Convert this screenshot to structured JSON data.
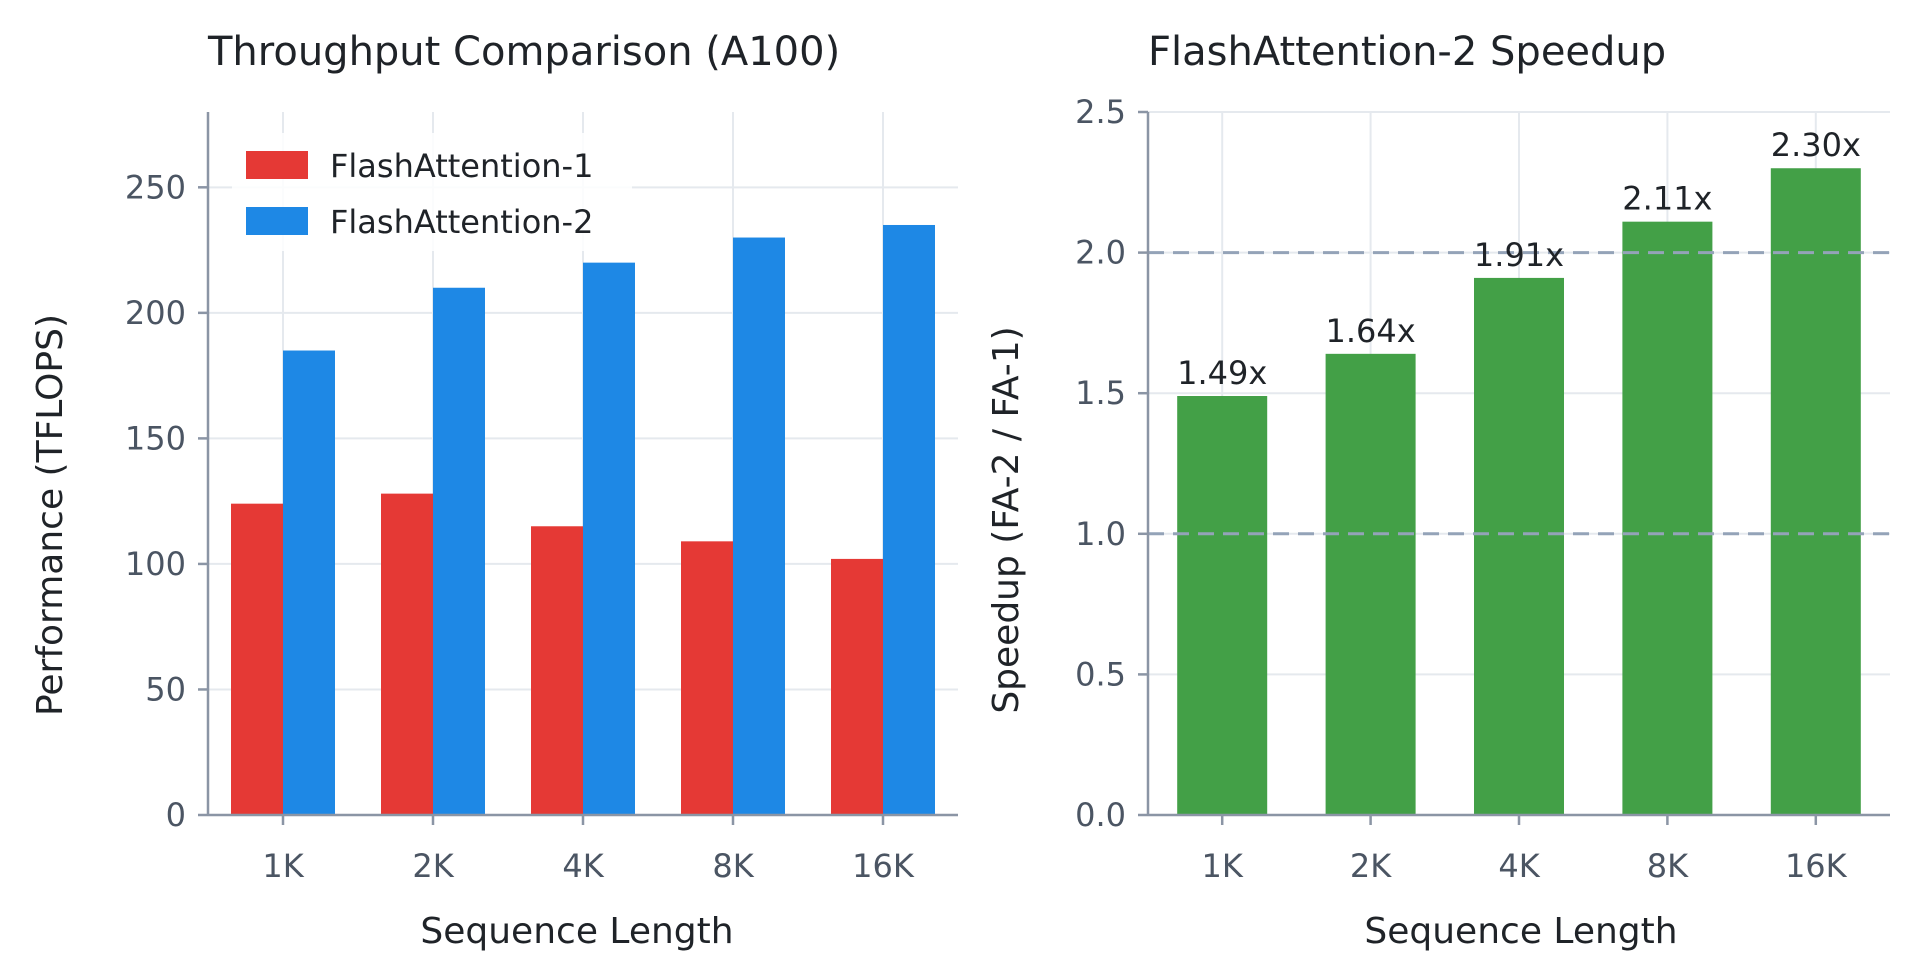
{
  "chart_data": [
    {
      "type": "bar",
      "title": "Throughput Comparison (A100)",
      "xlabel": "Sequence Length",
      "ylabel": "Performance (TFLOPS)",
      "categories": [
        "1K",
        "2K",
        "4K",
        "8K",
        "16K"
      ],
      "series": [
        {
          "name": "FlashAttention-1",
          "values": [
            124,
            128,
            115,
            109,
            102
          ],
          "color": "#e53935"
        },
        {
          "name": "FlashAttention-2",
          "values": [
            185,
            210,
            220,
            230,
            235
          ],
          "color": "#1e88e5"
        }
      ],
      "ylim": [
        0,
        280
      ],
      "yticks": [
        0,
        50,
        100,
        150,
        200,
        250
      ],
      "grid": true,
      "legend": "top-left"
    },
    {
      "type": "bar",
      "title": "FlashAttention-2 Speedup",
      "xlabel": "Sequence Length",
      "ylabel": "Speedup (FA-2 / FA-1)",
      "categories": [
        "1K",
        "2K",
        "4K",
        "8K",
        "16K"
      ],
      "series": [
        {
          "values": [
            1.49,
            1.64,
            1.91,
            2.11,
            2.3
          ],
          "color": "#43a047"
        }
      ],
      "data_labels": [
        "1.49x",
        "1.64x",
        "1.91x",
        "2.11x",
        "2.30x"
      ],
      "ylim": [
        0,
        2.5
      ],
      "yticks": [
        "0.0",
        "0.5",
        "1.0",
        "1.5",
        "2.0",
        "2.5"
      ],
      "reference_lines": [
        1.0,
        2.0
      ],
      "reference_color": "#94a3b8",
      "grid": true
    }
  ]
}
